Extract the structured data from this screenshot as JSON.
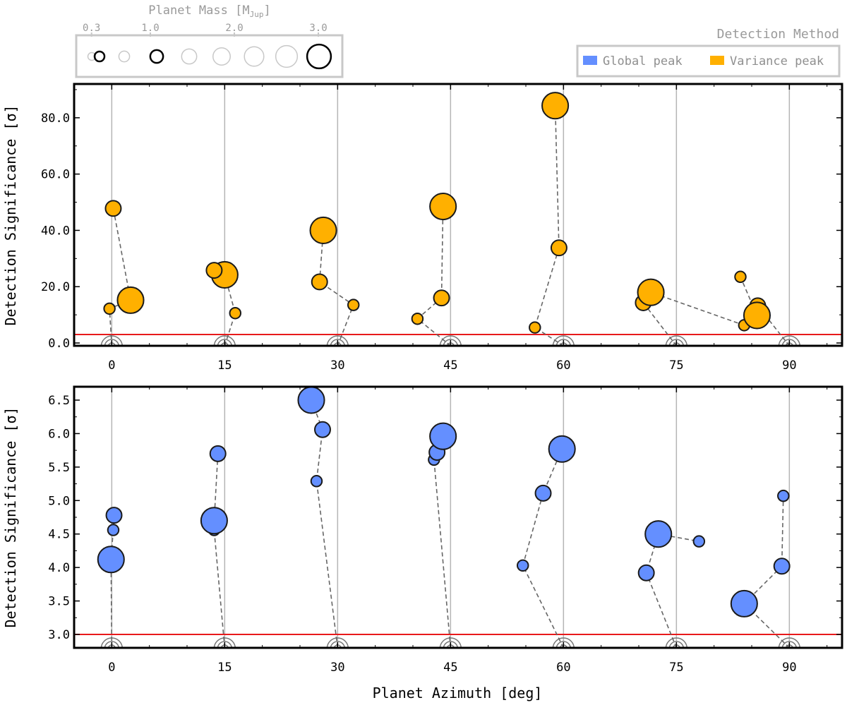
{
  "chart_data": [
    {
      "type": "scatter",
      "panel": "top",
      "method": "Variance peak",
      "color": "#FFB000",
      "ylabel": "Detection Significance [σ]",
      "xlim": [
        -5,
        97
      ],
      "ylim": [
        -1,
        92
      ],
      "yticks": [
        0,
        20,
        40,
        60,
        80
      ],
      "ytick_labels": [
        "0.0",
        "20.0",
        "40.0",
        "60.0",
        "80.0"
      ],
      "threshold": 3.0,
      "groups": [
        {
          "azimuth": 0,
          "points": [
            {
              "x": -0.3,
              "y": 12.2,
              "mass": 0.6
            },
            {
              "x": 2.5,
              "y": 15.2,
              "mass": 2.6
            },
            {
              "x": 0.2,
              "y": 47.8,
              "mass": 1.2
            }
          ]
        },
        {
          "azimuth": 15,
          "points": [
            {
              "x": 16.4,
              "y": 10.6,
              "mass": 0.6
            },
            {
              "x": 15.0,
              "y": 24.2,
              "mass": 2.6
            },
            {
              "x": 13.6,
              "y": 25.8,
              "mass": 1.2
            }
          ]
        },
        {
          "azimuth": 30,
          "points": [
            {
              "x": 32.1,
              "y": 13.5,
              "mass": 0.6
            },
            {
              "x": 27.6,
              "y": 21.7,
              "mass": 1.2
            },
            {
              "x": 28.1,
              "y": 40.0,
              "mass": 2.6
            }
          ]
        },
        {
          "azimuth": 45,
          "points": [
            {
              "x": 40.6,
              "y": 8.6,
              "mass": 0.6
            },
            {
              "x": 43.8,
              "y": 16.0,
              "mass": 1.2
            },
            {
              "x": 44.0,
              "y": 48.5,
              "mass": 2.6
            }
          ]
        },
        {
          "azimuth": 60,
          "points": [
            {
              "x": 56.2,
              "y": 5.5,
              "mass": 0.6
            },
            {
              "x": 59.4,
              "y": 33.8,
              "mass": 1.2
            },
            {
              "x": 58.9,
              "y": 84.3,
              "mass": 2.6
            }
          ]
        },
        {
          "azimuth": 75,
          "points": [
            {
              "x": 70.6,
              "y": 14.3,
              "mass": 1.2
            },
            {
              "x": 71.6,
              "y": 18.0,
              "mass": 2.6
            },
            {
              "x": 84.0,
              "y": 6.3,
              "mass": 0.6
            }
          ]
        },
        {
          "azimuth": 90,
          "points": [
            {
              "x": 85.8,
              "y": 13.2,
              "mass": 1.2
            },
            {
              "x": 85.7,
              "y": 9.8,
              "mass": 2.6
            },
            {
              "x": 83.5,
              "y": 23.5,
              "mass": 0.6
            }
          ]
        }
      ]
    },
    {
      "type": "scatter",
      "panel": "bottom",
      "method": "Global peak",
      "color": "#648FFF",
      "xlabel": "Planet Azimuth [deg]",
      "ylabel": "Detection Significance [σ]",
      "xlim": [
        -5,
        97
      ],
      "ylim": [
        2.8,
        6.7
      ],
      "yticks": [
        3.0,
        3.5,
        4.0,
        4.5,
        5.0,
        5.5,
        6.0,
        6.5
      ],
      "ytick_labels": [
        "3.0",
        "3.5",
        "4.0",
        "4.5",
        "5.0",
        "5.5",
        "6.0",
        "6.5"
      ],
      "threshold": 3.0,
      "groups": [
        {
          "azimuth": 0,
          "points": [
            {
              "x": -0.1,
              "y": 4.12,
              "mass": 2.6
            },
            {
              "x": 0.2,
              "y": 4.56,
              "mass": 0.6
            },
            {
              "x": 0.3,
              "y": 4.78,
              "mass": 1.2
            }
          ]
        },
        {
          "azimuth": 15,
          "points": [
            {
              "x": 13.6,
              "y": 4.56,
              "mass": 0.6
            },
            {
              "x": 13.6,
              "y": 4.7,
              "mass": 2.6
            },
            {
              "x": 14.1,
              "y": 5.7,
              "mass": 1.2
            }
          ]
        },
        {
          "azimuth": 30,
          "points": [
            {
              "x": 27.2,
              "y": 5.29,
              "mass": 0.6
            },
            {
              "x": 28.0,
              "y": 6.06,
              "mass": 1.2
            },
            {
              "x": 26.5,
              "y": 6.5,
              "mass": 2.6
            }
          ]
        },
        {
          "azimuth": 45,
          "points": [
            {
              "x": 42.8,
              "y": 5.61,
              "mass": 0.6
            },
            {
              "x": 43.2,
              "y": 5.72,
              "mass": 1.2
            },
            {
              "x": 44.0,
              "y": 5.96,
              "mass": 2.6
            }
          ]
        },
        {
          "azimuth": 60,
          "points": [
            {
              "x": 54.6,
              "y": 4.03,
              "mass": 0.6
            },
            {
              "x": 57.3,
              "y": 5.11,
              "mass": 1.2
            },
            {
              "x": 59.8,
              "y": 5.77,
              "mass": 2.6
            }
          ]
        },
        {
          "azimuth": 75,
          "points": [
            {
              "x": 71.0,
              "y": 3.92,
              "mass": 1.2
            },
            {
              "x": 72.6,
              "y": 4.5,
              "mass": 2.6
            },
            {
              "x": 78.0,
              "y": 4.39,
              "mass": 0.6
            }
          ]
        },
        {
          "azimuth": 90,
          "points": [
            {
              "x": 84.0,
              "y": 3.46,
              "mass": 2.6
            },
            {
              "x": 89.0,
              "y": 4.02,
              "mass": 1.2
            },
            {
              "x": 89.2,
              "y": 5.07,
              "mass": 0.6
            }
          ]
        }
      ]
    }
  ],
  "xticks": [
    0,
    15,
    30,
    45,
    60,
    75,
    90
  ],
  "xtick_labels": [
    "0",
    "15",
    "30",
    "45",
    "60",
    "75",
    "90"
  ],
  "mass_legend": {
    "title_prefix": "Planet Mass [M",
    "title_subscript": "Jup",
    "title_suffix": "]",
    "ticks": [
      0.3,
      1.0,
      2.0,
      3.0
    ],
    "tick_labels": [
      "0.3",
      "1.0",
      "2.0",
      "3.0"
    ],
    "markers": [
      0.15,
      0.3,
      0.6,
      1.0,
      1.4,
      1.8,
      2.2,
      2.6,
      3.0
    ],
    "highlighted": [
      0.3,
      1.0,
      3.0
    ]
  },
  "method_legend": {
    "title": "Detection Method",
    "entries": [
      {
        "label": "Global peak",
        "color": "#648FFF"
      },
      {
        "label": "Variance peak",
        "color": "#FFB000"
      }
    ]
  },
  "threshold_color": "#E8191B"
}
